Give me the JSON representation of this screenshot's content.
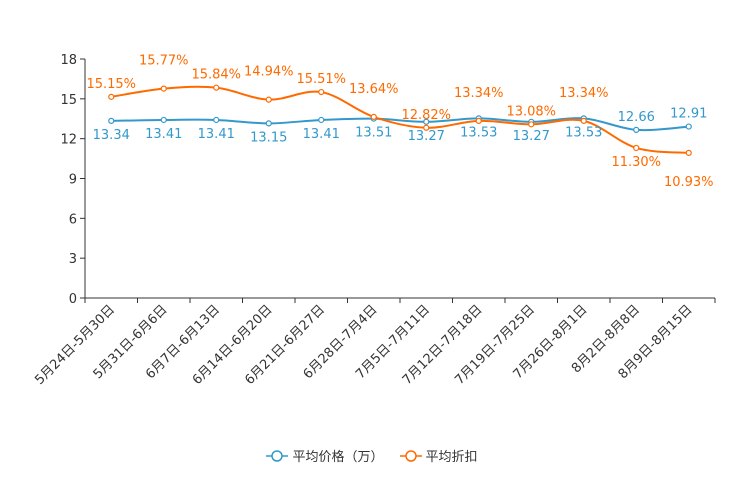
{
  "chart_data": {
    "type": "line",
    "categories": [
      "5月24日-5月30日",
      "5月31日-6月6日",
      "6月7日-6月13日",
      "6月14日-6月20日",
      "6月21日-6月27日",
      "6月28日-7月4日",
      "7月5日-7月11日",
      "7月12日-7月18日",
      "7月19日-7月25日",
      "7月26日-8月1日",
      "8月2日-8月8日",
      "8月9日-8月15日"
    ],
    "series": [
      {
        "name": "平均价格（万）",
        "color": "#3398cc",
        "values": [
          13.34,
          13.41,
          13.41,
          13.15,
          13.41,
          13.51,
          13.27,
          13.53,
          13.27,
          13.53,
          12.66,
          12.91
        ],
        "labels": [
          "13.34",
          "13.41",
          "13.41",
          "13.15",
          "13.41",
          "13.51",
          "13.27",
          "13.53",
          "13.27",
          "13.53",
          "12.66",
          "12.91"
        ]
      },
      {
        "name": "平均折扣",
        "color": "#ff6a00",
        "values": [
          15.15,
          15.77,
          15.84,
          14.94,
          15.51,
          13.64,
          12.82,
          13.34,
          13.08,
          13.34,
          11.3,
          10.93
        ],
        "labels": [
          "15.15%",
          "15.77%",
          "15.84%",
          "14.94%",
          "15.51%",
          "13.64%",
          "12.82%",
          "13.34%",
          "13.08%",
          "13.34%",
          "11.30%",
          "10.93%"
        ]
      }
    ],
    "yticks": [
      "0",
      "3",
      "6",
      "9",
      "12",
      "15",
      "18"
    ],
    "ylim": [
      0,
      18
    ],
    "legend_position": "bottom"
  }
}
